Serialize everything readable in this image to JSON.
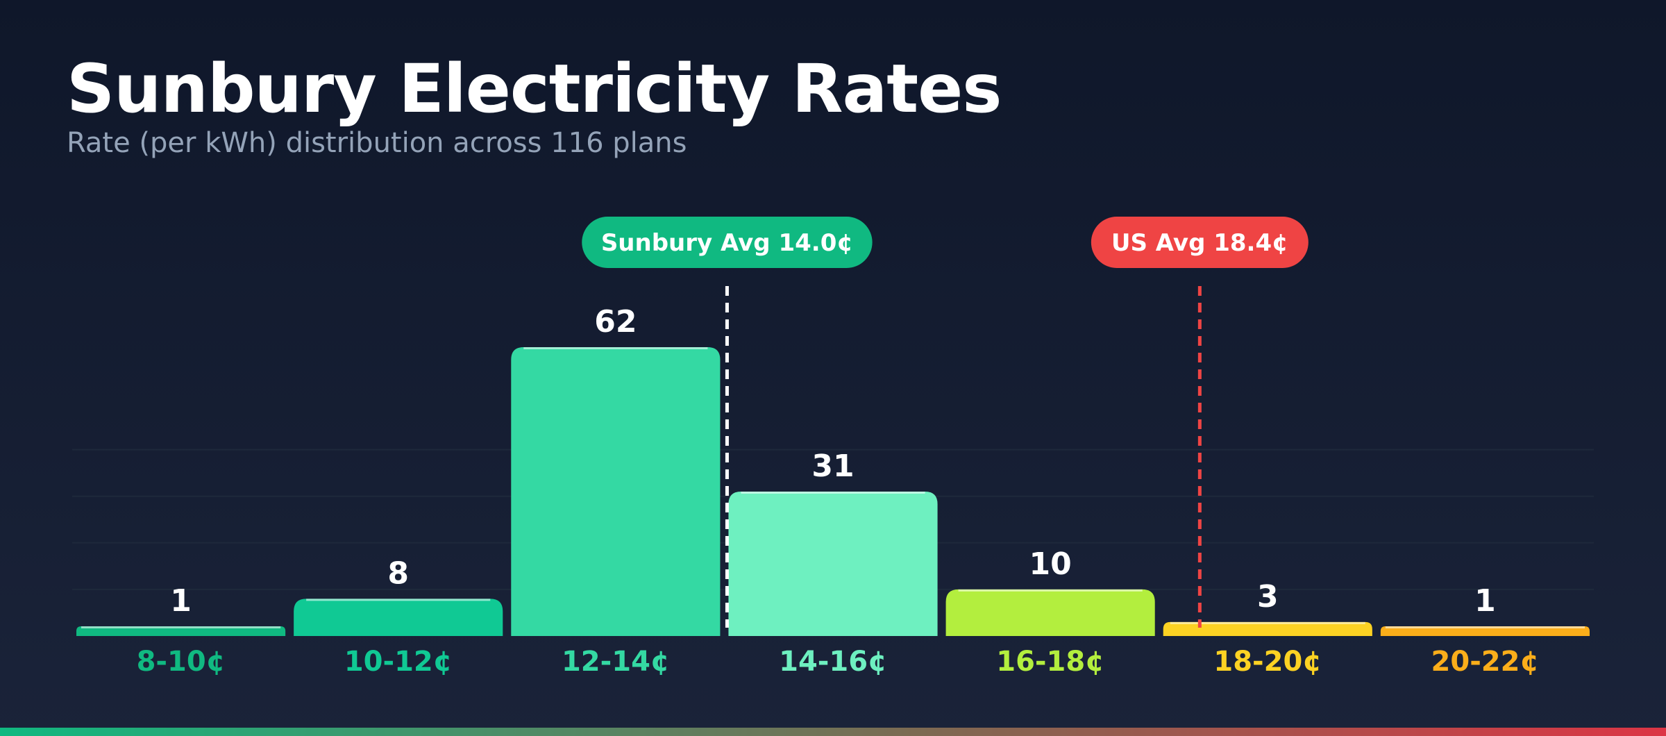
{
  "header": {
    "title": "Sunbury Electricity Rates",
    "subtitle": "Rate (per kWh) distribution across 116 plans"
  },
  "chart_data": {
    "type": "bar",
    "title": "Sunbury Electricity Rates",
    "subtitle": "Rate (per kWh) distribution across 116 plans",
    "categories": [
      "8-10¢",
      "10-12¢",
      "12-14¢",
      "14-16¢",
      "16-18¢",
      "18-20¢",
      "20-22¢"
    ],
    "values": [
      1,
      8,
      62,
      31,
      10,
      3,
      1
    ],
    "colors": [
      "#10b981",
      "#10c994",
      "#34d9a3",
      "#6ef0c0",
      "#b3ee3e",
      "#fcd223",
      "#fbae1a"
    ],
    "ylim": [
      0,
      70
    ],
    "grid": true,
    "reference_lines": [
      {
        "label": "Sunbury Avg 14.0¢",
        "value": 14.0,
        "color": "#10b981",
        "line_color": "#ffffff"
      },
      {
        "label": "US Avg 18.4¢",
        "value": 18.4,
        "color": "#ef4444",
        "line_color": "#ef4444"
      }
    ],
    "x_domain": [
      8,
      22
    ]
  }
}
